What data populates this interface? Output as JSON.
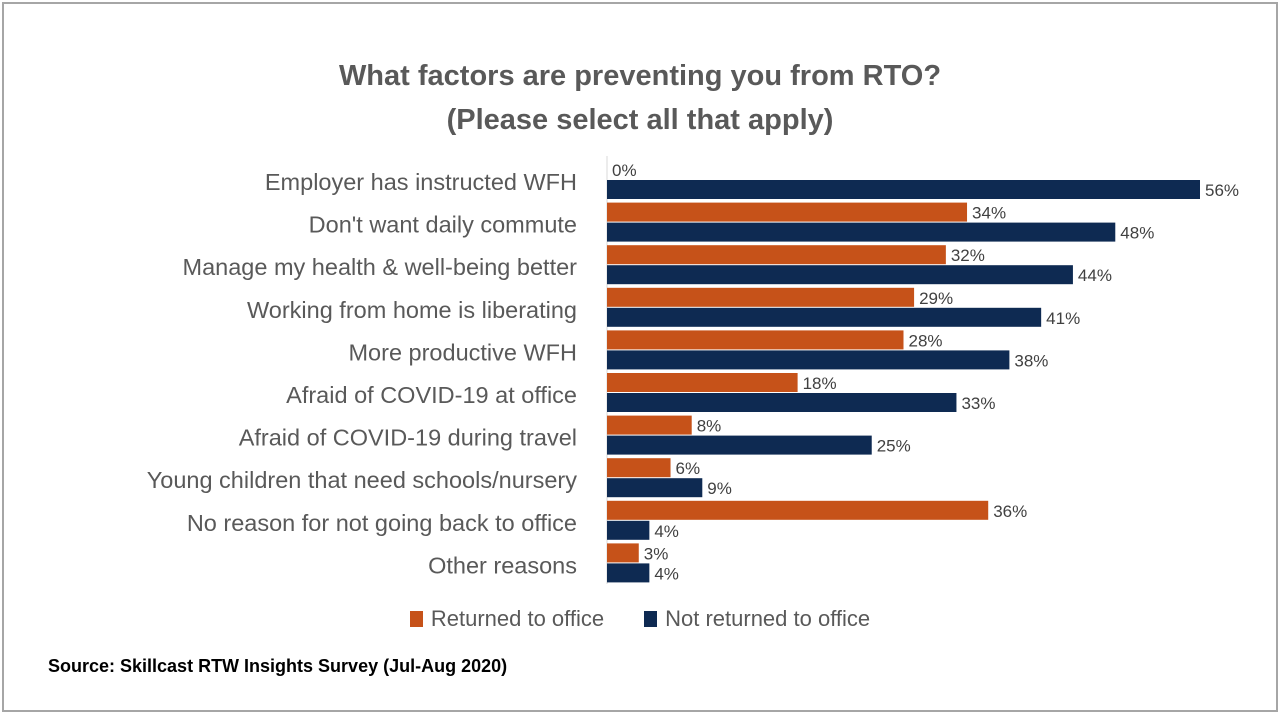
{
  "chart_data": {
    "type": "bar",
    "orientation": "horizontal",
    "title": "What factors are preventing you from RTO?",
    "subtitle": "(Please select all that apply)",
    "categories": [
      "Employer has instructed WFH",
      "Don't want daily commute",
      "Manage my health & well-being better",
      "Working from home is liberating",
      "More productive WFH",
      "Afraid of COVID-19 at office",
      "Afraid of COVID-19 during travel",
      "Young children that need schools/nursery",
      "No reason for not going back to office",
      "Other reasons"
    ],
    "series": [
      {
        "name": "Returned to office",
        "color": "#c65219",
        "values": [
          0,
          34,
          32,
          29,
          28,
          18,
          8,
          6,
          36,
          3
        ]
      },
      {
        "name": "Not returned to office",
        "color": "#0e2a52",
        "values": [
          56,
          48,
          44,
          41,
          38,
          33,
          25,
          9,
          4,
          4
        ]
      }
    ],
    "value_format": "percent",
    "xlim": [
      0,
      56
    ],
    "grid": false,
    "legend_position": "bottom",
    "source": "Source: Skillcast RTW Insights Survey (Jul-Aug 2020)"
  }
}
